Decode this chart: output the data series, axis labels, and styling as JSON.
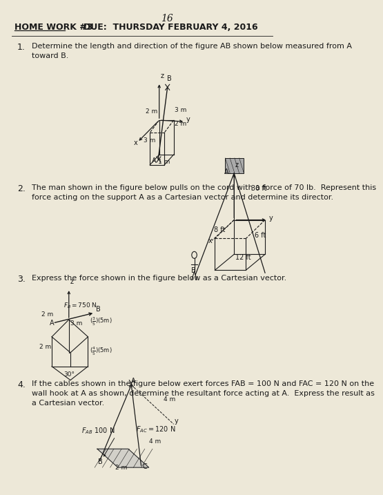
{
  "bg_color": "#ede8d8",
  "text_color": "#1a1a1a",
  "page_number": "16",
  "hw_label": "HOME WORK #3",
  "due_label": "DUE:  THURSDAY FEBRUARY 4, 2016",
  "p1_num": "1.",
  "p1_text": "Determine the length and direction of the figure AB shown below measured from A\ntoward B.",
  "p2_num": "2.",
  "p2_text": "The man shown in the figure below pulls on the cord with a force of 70 lb.  Represent this\nforce acting on the support A as a Cartesian vector and determine its director.",
  "p3_num": "3.",
  "p3_text": "Express the force shown in the figure below as a Cartesian vector.",
  "p4_num": "4.",
  "p4_text": "If the cables shown in the figure below exert forces FAB = 100 N and FAC = 120 N on the\nwall hook at A as shown, determine the resultant force acting at A.  Express the result as\na Cartesian vector."
}
